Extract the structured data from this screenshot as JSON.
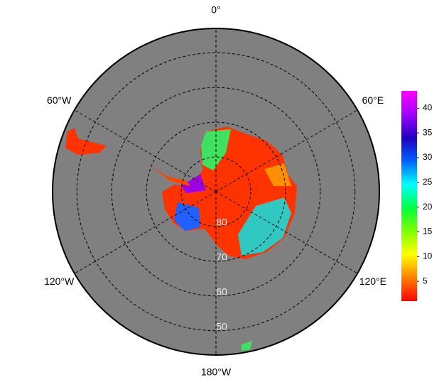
{
  "map": {
    "projection": "south-polar-stereographic",
    "boundary_lat": 43,
    "lon_lines": [
      {
        "value": 0,
        "label": "0°"
      },
      {
        "value": 60,
        "label": "60°E"
      },
      {
        "value": 120,
        "label": "120°E"
      },
      {
        "value": 180,
        "label": "180°W"
      },
      {
        "value": -120,
        "label": "120°W"
      },
      {
        "value": -60,
        "label": "60°W"
      }
    ],
    "lat_rings": [
      80,
      70,
      60,
      50
    ],
    "colorbar": {
      "lim": [
        1,
        43.5
      ],
      "ticks": [
        5,
        10,
        15,
        20,
        25,
        30,
        35,
        40
      ],
      "colors": [
        "#ff0000",
        "#ff8000",
        "#ffff00",
        "#80ff00",
        "#00ff40",
        "#00ffff",
        "#0060ff",
        "#2000c0",
        "#a000ff",
        "#ff00ff"
      ]
    }
  }
}
